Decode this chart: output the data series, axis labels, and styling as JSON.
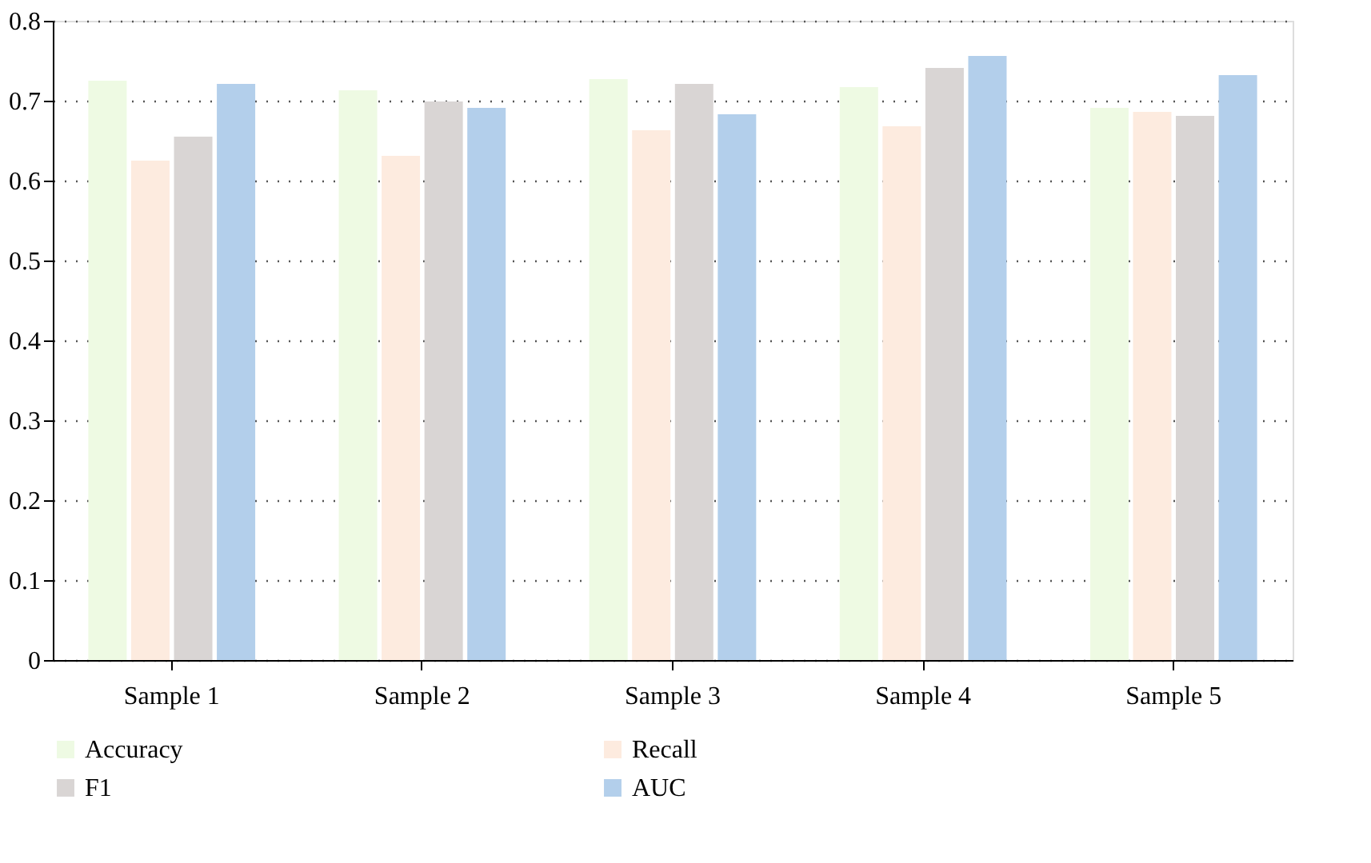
{
  "chart_data": {
    "type": "bar",
    "categories": [
      "Sample 1",
      "Sample 2",
      "Sample 3",
      "Sample 4",
      "Sample 5"
    ],
    "series": [
      {
        "name": "Accuracy",
        "color": "#eefae3",
        "values": [
          0.725,
          0.713,
          0.727,
          0.717,
          0.691
        ]
      },
      {
        "name": "Recall",
        "color": "#fdebdf",
        "values": [
          0.625,
          0.631,
          0.663,
          0.668,
          0.686
        ]
      },
      {
        "name": "F1",
        "color": "#d9d5d4",
        "values": [
          0.655,
          0.699,
          0.721,
          0.741,
          0.681
        ]
      },
      {
        "name": "AUC",
        "color": "#b3cfeb",
        "values": [
          0.721,
          0.691,
          0.683,
          0.756,
          0.732
        ]
      }
    ],
    "ylim": [
      0,
      0.8
    ],
    "yticks": [
      0,
      0.1,
      0.2,
      0.3,
      0.4,
      0.5,
      0.6,
      0.7,
      0.8
    ],
    "grid": "y",
    "legend": "bottom"
  }
}
